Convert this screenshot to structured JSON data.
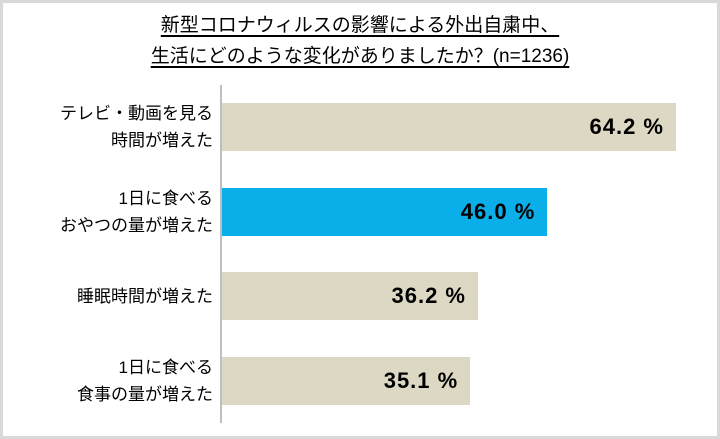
{
  "chart_data": {
    "type": "bar",
    "orientation": "horizontal",
    "title_lines": [
      "新型コロナウィルスの影響による外出自粛中、",
      "生活にどのような変化がありましたか？(n=1236)"
    ],
    "sample_size_text": "n=1236",
    "categories": [
      "テレビ・動画を見る時間が増えた",
      "1日に食べるおやつの量が増えた",
      "睡眠時間が増えた",
      "1日に食べる食事の量が増えた"
    ],
    "values": [
      64.2,
      46.0,
      36.2,
      35.1
    ],
    "items": [
      {
        "category_lines": [
          "テレビ・動画を見る",
          "時間が増えた"
        ],
        "value": 64.2,
        "value_label": "64.2 %",
        "highlighted": false
      },
      {
        "category_lines": [
          "1日に食べる",
          "おやつの量が増えた"
        ],
        "value": 46.0,
        "value_label": "46.0 %",
        "highlighted": true
      },
      {
        "category_lines": [
          "睡眠時間が増えた"
        ],
        "value": 36.2,
        "value_label": "36.2 %",
        "highlighted": false
      },
      {
        "category_lines": [
          "1日に食べる",
          "食事の量が増えた"
        ],
        "value": 35.1,
        "value_label": "35.1 %",
        "highlighted": false
      }
    ],
    "xlim": [
      0,
      70
    ],
    "grid": false,
    "legend": false,
    "colors": {
      "bar": "#DCD8C3",
      "highlight": "#0AAEE8",
      "axis_line": "#BFBFBF",
      "frame_border": "#D9D9D9",
      "value_text": "#000000"
    }
  }
}
